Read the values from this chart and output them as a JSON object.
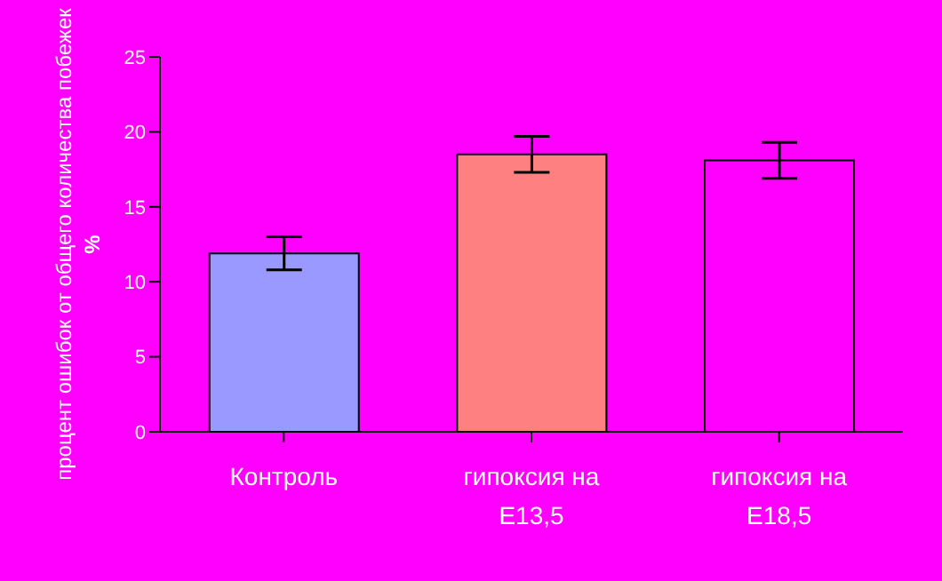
{
  "chart_data": {
    "type": "bar",
    "ylabel": "процент ошибок от общего количества побежек %",
    "categories": [
      "Контроль",
      "гипоксия на E13,5",
      "гипоксия на E18,5"
    ],
    "values": [
      11.9,
      18.5,
      18.1
    ],
    "colors": [
      "#9999ff",
      "#ff8080",
      "#ff00ff"
    ],
    "errors": [
      1.1,
      1.2,
      1.2
    ],
    "ylim": [
      0,
      25
    ],
    "yticks": [
      0,
      5,
      10,
      15,
      20,
      25
    ],
    "grid": false,
    "legend": false
  }
}
